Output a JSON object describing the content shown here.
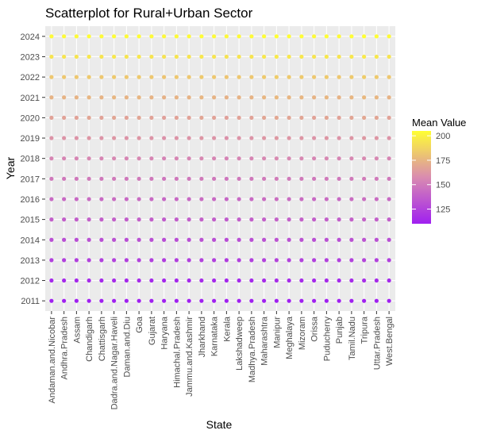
{
  "chart_data": {
    "type": "scatter",
    "title": "Scatterplot for Rural+Urban Sector",
    "xlabel": "State",
    "ylabel": "Year",
    "categories": [
      "Andaman.and.Nicobar",
      "Andhra.Pradesh",
      "Assam",
      "Chandigarh",
      "Chattisgarh",
      "Dadra.and.Nagar.Haveli",
      "Daman.and.Diu",
      "Goa",
      "Gujarat",
      "Haryana",
      "Himachal.Pradesh",
      "Jammu.and.Kashmir",
      "Jharkhand",
      "Karnataka",
      "Kerala",
      "Lakshadweep",
      "Madhya.Pradesh",
      "Maharashtra",
      "Manipur",
      "Meghalaya",
      "Mizoram",
      "Orissa",
      "Puducherry",
      "Punjab",
      "Tamil.Nadu",
      "Tripura",
      "Uttar.Pradesh",
      "West.Bengal"
    ],
    "years": [
      2011,
      2012,
      2013,
      2014,
      2015,
      2016,
      2017,
      2018,
      2019,
      2020,
      2021,
      2022,
      2023,
      2024
    ],
    "year_means": [
      105,
      114,
      124,
      131,
      138,
      143,
      149,
      155,
      161,
      167,
      174,
      182,
      194,
      203
    ],
    "state_offsets": [
      0,
      0,
      0,
      1,
      0,
      1,
      0,
      1,
      0,
      -1,
      0,
      0,
      1,
      0,
      -1,
      0,
      0,
      1,
      2,
      1,
      1,
      0,
      1,
      0,
      1,
      2,
      1,
      0
    ],
    "grid": true,
    "legend": {
      "title": "Mean Value",
      "position": "right",
      "ticks": [
        125,
        150,
        175,
        200
      ],
      "range": [
        110,
        205
      ],
      "color_low": "#A020F0",
      "color_mid": "#D98BB0",
      "color_high": "#FFFF33"
    },
    "colors": {
      "panel_bg": "#EBEBEB",
      "grid": "#FFFFFF"
    }
  }
}
